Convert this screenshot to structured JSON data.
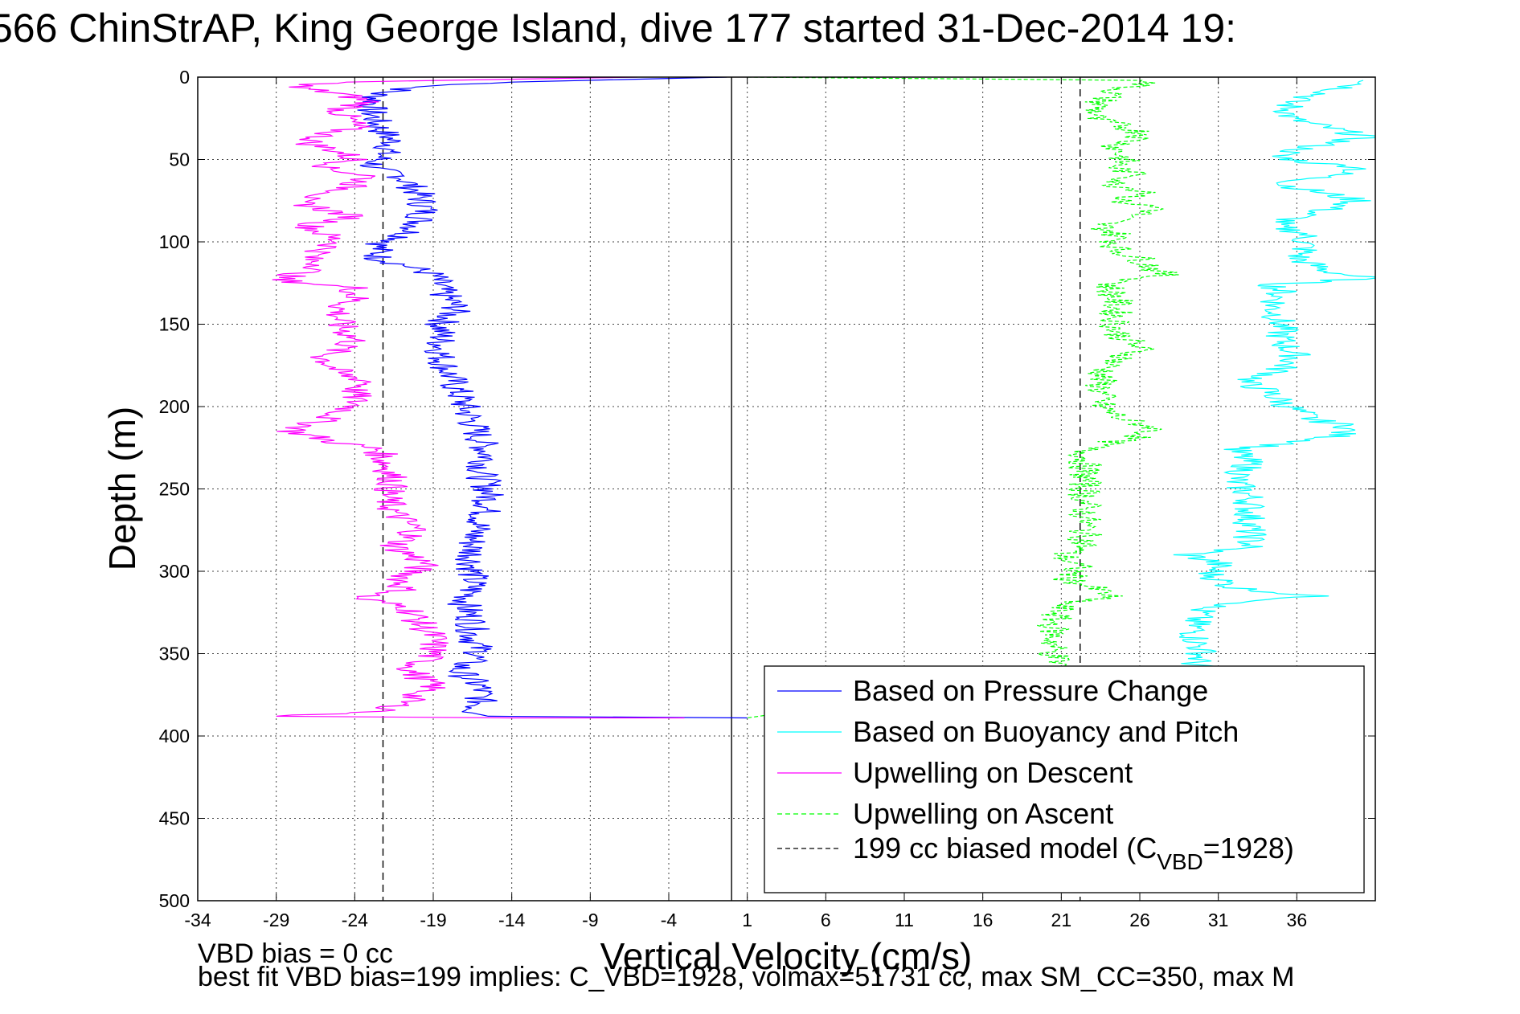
{
  "chart_data": {
    "type": "line",
    "title": "566 ChinStrAP, King George Island, dive 177 started 31-Dec-2014 19:",
    "xlabel": "Vertical Velocity (cm/s)",
    "ylabel": "Depth (m)",
    "xlim": [
      -34,
      41
    ],
    "ylim": [
      0,
      500
    ],
    "y_reversed": true,
    "grid": true,
    "x_ticks": [
      -34,
      -29,
      -24,
      -19,
      -14,
      -9,
      -4,
      1,
      6,
      11,
      16,
      21,
      26,
      31,
      36
    ],
    "y_ticks": [
      0,
      50,
      100,
      150,
      200,
      250,
      300,
      350,
      400,
      450,
      500
    ],
    "x_tick_labels": [
      "-34",
      "-29",
      "-24",
      "-19",
      "-14",
      "-9",
      "-4",
      "1",
      "6",
      "11",
      "16",
      "21",
      "26",
      "31",
      "36"
    ],
    "y_tick_labels": [
      "0",
      "50",
      "100",
      "150",
      "200",
      "250",
      "300",
      "350",
      "400",
      "450",
      "500"
    ],
    "legend_position": "bottom-right",
    "reference_lines": [
      {
        "x": 0,
        "style": "solid",
        "color": "#000000"
      },
      {
        "x": -22.2,
        "style": "dashed",
        "color": "#000000"
      },
      {
        "x": 22.2,
        "style": "dashed",
        "color": "#000000"
      }
    ],
    "series": [
      {
        "name": "Based on Pressure Change",
        "color": "#0000ff",
        "style": "solid",
        "points": [
          [
            -0.3,
            0
          ],
          [
            -14,
            3
          ],
          [
            -20,
            6
          ],
          [
            -22.5,
            10
          ],
          [
            -23,
            20
          ],
          [
            -22.5,
            30
          ],
          [
            -21.5,
            40
          ],
          [
            -22,
            45
          ],
          [
            -23,
            55
          ],
          [
            -21,
            60
          ],
          [
            -20,
            70
          ],
          [
            -19.5,
            80
          ],
          [
            -20,
            90
          ],
          [
            -21,
            98
          ],
          [
            -22.5,
            102
          ],
          [
            -22.5,
            110
          ],
          [
            -20.5,
            115
          ],
          [
            -19,
            120
          ],
          [
            -18.5,
            130
          ],
          [
            -17.5,
            140
          ],
          [
            -18.5,
            150
          ],
          [
            -18.5,
            160
          ],
          [
            -18.5,
            170
          ],
          [
            -18,
            180
          ],
          [
            -17.5,
            190
          ],
          [
            -17,
            200
          ],
          [
            -16.5,
            210
          ],
          [
            -16,
            220
          ],
          [
            -15.5,
            230
          ],
          [
            -16,
            240
          ],
          [
            -15.5,
            250
          ],
          [
            -15.5,
            260
          ],
          [
            -16,
            270
          ],
          [
            -16.5,
            280
          ],
          [
            -16.5,
            290
          ],
          [
            -16.5,
            300
          ],
          [
            -16.5,
            310
          ],
          [
            -17,
            320
          ],
          [
            -16.5,
            330
          ],
          [
            -16.5,
            340
          ],
          [
            -16,
            350
          ],
          [
            -17.5,
            360
          ],
          [
            -16,
            370
          ],
          [
            -16,
            380
          ],
          [
            -16.5,
            386
          ],
          [
            -15.5,
            388
          ],
          [
            1,
            389
          ]
        ]
      },
      {
        "name": "Based on Buoyancy and Pitch",
        "color": "#00ffff",
        "style": "solid",
        "points": [
          [
            41,
            2
          ],
          [
            38.5,
            8
          ],
          [
            35.5,
            15
          ],
          [
            35.5,
            25
          ],
          [
            38.5,
            32
          ],
          [
            40.5,
            36
          ],
          [
            37,
            42
          ],
          [
            34.5,
            48
          ],
          [
            37,
            52
          ],
          [
            40.5,
            55
          ],
          [
            38,
            60
          ],
          [
            35,
            65
          ],
          [
            37.5,
            70
          ],
          [
            40,
            75
          ],
          [
            36,
            85
          ],
          [
            34.5,
            90
          ],
          [
            36.5,
            95
          ],
          [
            36.5,
            105
          ],
          [
            36,
            110
          ],
          [
            38,
            118
          ],
          [
            40.5,
            122
          ],
          [
            34.5,
            126
          ],
          [
            35,
            130
          ],
          [
            34.5,
            140
          ],
          [
            35,
            150
          ],
          [
            35,
            160
          ],
          [
            36,
            170
          ],
          [
            34.5,
            180
          ],
          [
            32.5,
            185
          ],
          [
            34,
            190
          ],
          [
            35.5,
            200
          ],
          [
            37,
            208
          ],
          [
            39.5,
            212
          ],
          [
            38.5,
            218
          ],
          [
            36,
            222
          ],
          [
            32,
            226
          ],
          [
            33,
            235
          ],
          [
            32,
            245
          ],
          [
            33,
            255
          ],
          [
            33,
            265
          ],
          [
            33,
            275
          ],
          [
            33,
            285
          ],
          [
            29,
            290
          ],
          [
            31,
            295
          ],
          [
            30.5,
            302
          ],
          [
            32,
            310
          ],
          [
            37,
            315
          ],
          [
            30,
            322
          ],
          [
            29.5,
            330
          ],
          [
            29.5,
            340
          ],
          [
            30,
            350
          ],
          [
            29.5,
            356
          ],
          [
            30.5,
            360
          ]
        ]
      },
      {
        "name": "Upwelling on Descent",
        "color": "#ff00ff",
        "style": "solid",
        "points": [
          [
            -6,
            0
          ],
          [
            -25,
            3
          ],
          [
            -28,
            6
          ],
          [
            -25,
            10
          ],
          [
            -23,
            15
          ],
          [
            -25,
            20
          ],
          [
            -24,
            30
          ],
          [
            -26,
            35
          ],
          [
            -27,
            40
          ],
          [
            -25,
            45
          ],
          [
            -24,
            50
          ],
          [
            -26,
            55
          ],
          [
            -23,
            60
          ],
          [
            -25,
            70
          ],
          [
            -28,
            75
          ],
          [
            -26,
            80
          ],
          [
            -24,
            85
          ],
          [
            -27,
            90
          ],
          [
            -26,
            95
          ],
          [
            -25,
            100
          ],
          [
            -27,
            110
          ],
          [
            -26,
            115
          ],
          [
            -29,
            123
          ],
          [
            -24,
            128
          ],
          [
            -24,
            135
          ],
          [
            -25,
            140
          ],
          [
            -25,
            150
          ],
          [
            -24,
            160
          ],
          [
            -26,
            170
          ],
          [
            -25,
            180
          ],
          [
            -23,
            185
          ],
          [
            -24,
            190
          ],
          [
            -24,
            200
          ],
          [
            -26,
            208
          ],
          [
            -28,
            215
          ],
          [
            -25,
            222
          ],
          [
            -22.5,
            226
          ],
          [
            -22,
            235
          ],
          [
            -21.5,
            245
          ],
          [
            -22,
            255
          ],
          [
            -21.5,
            265
          ],
          [
            -20,
            275
          ],
          [
            -21.5,
            285
          ],
          [
            -19.5,
            295
          ],
          [
            -21,
            305
          ],
          [
            -21,
            312
          ],
          [
            -24,
            316
          ],
          [
            -20.5,
            322
          ],
          [
            -20,
            330
          ],
          [
            -19,
            340
          ],
          [
            -19,
            350
          ],
          [
            -20.5,
            360
          ],
          [
            -19,
            370
          ],
          [
            -21,
            380
          ],
          [
            -22,
            385
          ],
          [
            -29,
            388
          ],
          [
            -14,
            389
          ],
          [
            -3,
            389
          ]
        ]
      },
      {
        "name": "Upwelling on Ascent",
        "color": "#00ff00",
        "style": "dashed",
        "points": [
          [
            1,
            0
          ],
          [
            27,
            2
          ],
          [
            24.5,
            8
          ],
          [
            23.5,
            15
          ],
          [
            23,
            25
          ],
          [
            25,
            30
          ],
          [
            26.5,
            35
          ],
          [
            24.5,
            42
          ],
          [
            25,
            50
          ],
          [
            24.5,
            55
          ],
          [
            26,
            60
          ],
          [
            24,
            65
          ],
          [
            27,
            70
          ],
          [
            24.5,
            75
          ],
          [
            27.5,
            80
          ],
          [
            25,
            85
          ],
          [
            23.5,
            90
          ],
          [
            24.5,
            95
          ],
          [
            24.5,
            105
          ],
          [
            26,
            110
          ],
          [
            27.5,
            120
          ],
          [
            24,
            126
          ],
          [
            24.5,
            135
          ],
          [
            24.5,
            145
          ],
          [
            24.5,
            155
          ],
          [
            26,
            165
          ],
          [
            24,
            175
          ],
          [
            23.5,
            182
          ],
          [
            23.5,
            190
          ],
          [
            23.5,
            200
          ],
          [
            25,
            208
          ],
          [
            27,
            213
          ],
          [
            26,
            218
          ],
          [
            24,
            222
          ],
          [
            22.5,
            226
          ],
          [
            22.5,
            235
          ],
          [
            22.5,
            245
          ],
          [
            22.5,
            255
          ],
          [
            22.5,
            265
          ],
          [
            22.5,
            275
          ],
          [
            22.5,
            285
          ],
          [
            21,
            290
          ],
          [
            22,
            297
          ],
          [
            21.5,
            305
          ],
          [
            23.5,
            312
          ],
          [
            24,
            315
          ],
          [
            21,
            320
          ],
          [
            20.5,
            330
          ],
          [
            20.5,
            340
          ],
          [
            20.5,
            350
          ],
          [
            21,
            358
          ],
          [
            21.5,
            362
          ],
          [
            1,
            389
          ]
        ]
      },
      {
        "name": "199 cc biased model (C",
        "name_subscript": "VBD",
        "name_suffix": "=1928)",
        "color": "#000000",
        "style": "dashed",
        "points": []
      }
    ],
    "annotations": [
      "VBD bias = 0 cc",
      "best fit VBD bias=199 implies: C_VBD=1928, volmax=51731 cc, max SM_CC=350, max M"
    ]
  }
}
